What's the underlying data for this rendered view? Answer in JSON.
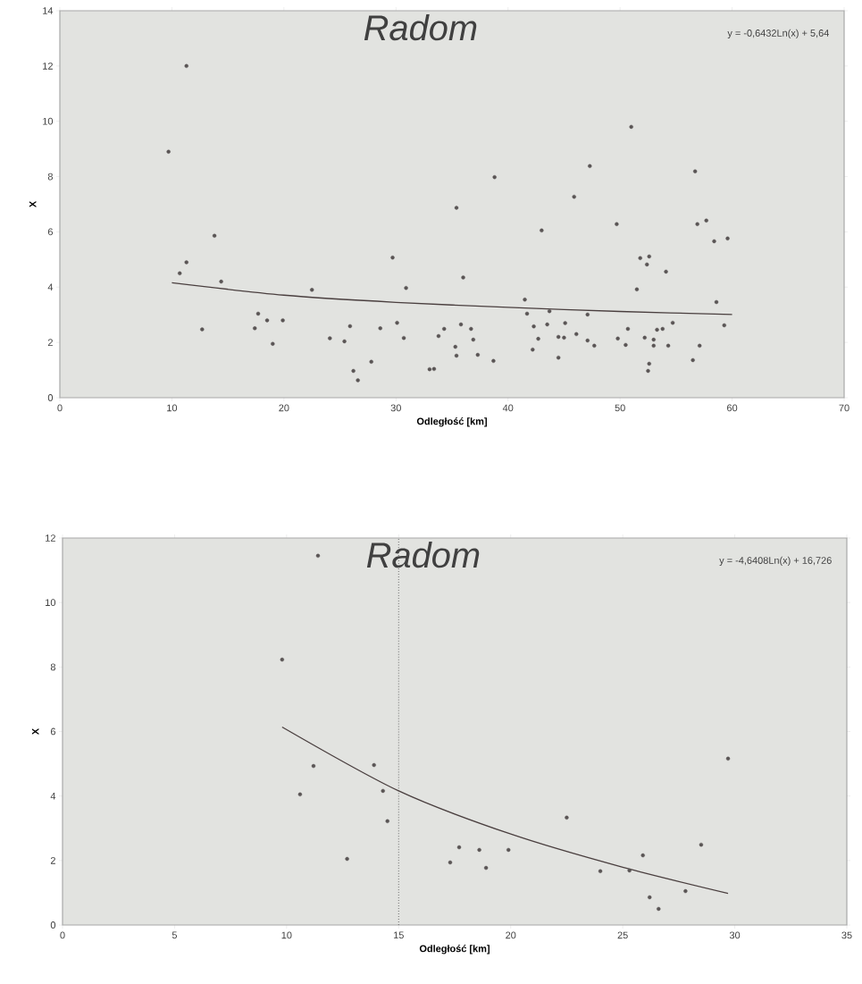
{
  "chart_data": [
    {
      "type": "scatter",
      "title": "Radom",
      "xlabel": "Odległość [km]",
      "ylabel": "X",
      "xlim": [
        0,
        70
      ],
      "ylim": [
        0,
        14
      ],
      "xticks": [
        0,
        10,
        20,
        30,
        40,
        50,
        60,
        70
      ],
      "yticks": [
        0,
        2,
        4,
        6,
        8,
        10,
        12,
        14
      ],
      "marker": "circle",
      "grid": false,
      "annotations": [
        "y = -0,6432Ln(x) + 5,64"
      ],
      "series": [
        {
          "type": "scatter",
          "color": "#5a5555",
          "x": [
            11.3,
            9.7,
            13.8,
            11.3,
            10.7,
            14.4,
            22.5,
            12.7,
            17.7,
            17.4,
            18.5,
            19.9,
            19.0,
            38.8,
            45.9,
            35.4,
            43.0,
            29.7,
            36.0,
            30.9,
            41.5,
            41.7,
            43.7,
            25.9,
            28.6,
            30.1,
            24.1,
            25.4,
            30.7,
            34.3,
            33.8,
            35.8,
            36.7,
            36.9,
            35.3,
            35.4,
            37.3,
            38.7,
            27.8,
            26.2,
            26.6,
            33.0,
            33.4,
            42.3,
            43.5,
            42.7,
            45.1,
            44.5,
            45.0,
            46.1,
            42.2,
            44.5,
            51.0,
            47.3,
            56.7,
            49.7,
            56.9,
            57.7,
            58.4,
            59.6,
            51.8,
            52.6,
            52.4,
            54.1,
            51.5,
            58.6,
            47.1,
            59.3,
            47.1,
            47.7,
            50.7,
            49.8,
            50.5,
            52.2,
            53.0,
            53.0,
            53.3,
            53.8,
            54.7,
            54.3,
            57.1,
            56.5,
            52.6,
            52.5
          ],
          "values": [
            12.0,
            8.9,
            5.86,
            4.9,
            4.5,
            4.2,
            3.9,
            2.47,
            3.04,
            2.51,
            2.8,
            2.8,
            1.95,
            7.98,
            7.27,
            6.87,
            6.05,
            5.07,
            4.35,
            3.97,
            3.55,
            3.04,
            3.13,
            2.59,
            2.51,
            2.71,
            2.15,
            2.04,
            2.16,
            2.49,
            2.23,
            2.65,
            2.49,
            2.1,
            1.84,
            1.52,
            1.55,
            1.33,
            1.3,
            0.97,
            0.63,
            1.03,
            1.04,
            2.58,
            2.65,
            2.13,
            2.7,
            2.2,
            2.17,
            2.3,
            1.74,
            1.45,
            9.8,
            8.38,
            8.19,
            6.28,
            6.28,
            6.41,
            5.66,
            5.76,
            5.05,
            5.11,
            4.82,
            4.56,
            3.92,
            3.46,
            3.01,
            2.62,
            2.07,
            1.88,
            2.49,
            2.14,
            1.91,
            2.17,
            2.1,
            1.88,
            2.46,
            2.49,
            2.71,
            1.88,
            1.88,
            1.36,
            1.23,
            0.97
          ]
        },
        {
          "type": "line",
          "color": "#4a3f3f",
          "marker": "none",
          "x": [
            10,
            20,
            30,
            40,
            50,
            60
          ],
          "values": [
            4.16,
            3.71,
            3.45,
            3.27,
            3.12,
            3.01
          ]
        }
      ]
    },
    {
      "type": "scatter",
      "title": "Radom",
      "xlabel": "Odległość [km]",
      "ylabel": "X",
      "xlim": [
        0,
        35
      ],
      "ylim": [
        0,
        12
      ],
      "xticks": [
        0,
        5,
        10,
        15,
        20,
        25,
        30,
        35
      ],
      "yticks": [
        0,
        2,
        4,
        6,
        8,
        10,
        12
      ],
      "marker": "circle",
      "grid": false,
      "annotations": [
        "y = -4,6408Ln(x) + 16,726"
      ],
      "ref_lines": [
        {
          "axis": "x",
          "value": 15,
          "color": "#6a6a6a",
          "line_style": "dotted"
        }
      ],
      "series": [
        {
          "type": "scatter",
          "color": "#5a5555",
          "x": [
            11.4,
            9.8,
            11.2,
            13.9,
            10.6,
            14.3,
            14.5,
            12.7,
            17.3,
            17.7,
            18.6,
            19.9,
            18.9,
            22.5,
            29.7,
            28.5,
            25.9,
            24.0,
            25.3,
            27.8,
            26.2,
            26.6
          ],
          "values": [
            11.45,
            8.23,
            4.93,
            4.96,
            4.05,
            4.16,
            3.22,
            2.05,
            1.94,
            2.41,
            2.33,
            2.33,
            1.77,
            3.33,
            5.16,
            2.49,
            2.16,
            1.67,
            1.69,
            1.05,
            0.86,
            0.5
          ]
        },
        {
          "type": "line",
          "color": "#4a3f3f",
          "marker": "none",
          "x": [
            9.8,
            15,
            20,
            25,
            29.7
          ],
          "values": [
            6.14,
            4.16,
            2.82,
            1.79,
            0.98
          ]
        }
      ]
    }
  ]
}
